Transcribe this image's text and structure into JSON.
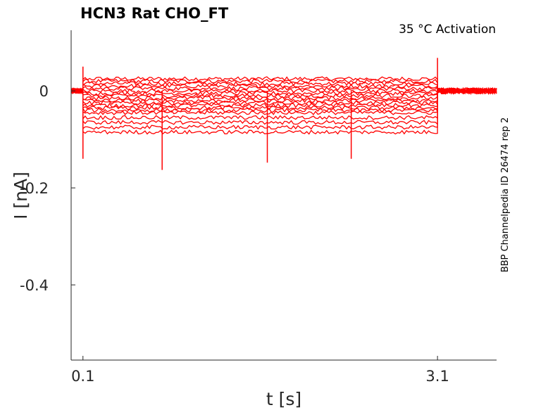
{
  "chart_data": {
    "type": "line",
    "title": "HCN3  Rat  CHO_FT",
    "annotation": "35 °C  Activation",
    "side_label": "BBP Channelpedia ID 26474 rep 2",
    "xlabel": "t [s]",
    "ylabel": "I [nA]",
    "xlim": [
      0.0,
      3.6
    ],
    "ylim": [
      -0.555,
      0.125
    ],
    "xticks": [
      0.1,
      3.1
    ],
    "xtick_labels": [
      "0.1",
      "3.1"
    ],
    "yticks": [
      0,
      -0.2,
      -0.4
    ],
    "ytick_labels": [
      "0",
      "-0.2",
      "-0.4"
    ],
    "grid": false,
    "line_color": "#ff0000",
    "protocol": {
      "pre_step_end": 0.1,
      "step_end": 3.1
    },
    "steady_levels": [
      0.025,
      0.02,
      0.015,
      0.01,
      0.005,
      0.0,
      -0.005,
      -0.01,
      -0.015,
      -0.02,
      -0.025,
      -0.03,
      -0.035,
      -0.04,
      -0.045,
      -0.055,
      -0.065,
      -0.075,
      -0.085
    ],
    "spikes": [
      {
        "t": 0.1,
        "i": -0.14
      },
      {
        "t": 0.1,
        "i": 0.05
      },
      {
        "t": 0.77,
        "i": -0.163
      },
      {
        "t": 1.66,
        "i": -0.148
      },
      {
        "t": 2.37,
        "i": -0.14
      },
      {
        "t": 3.1,
        "i": 0.068
      }
    ]
  }
}
